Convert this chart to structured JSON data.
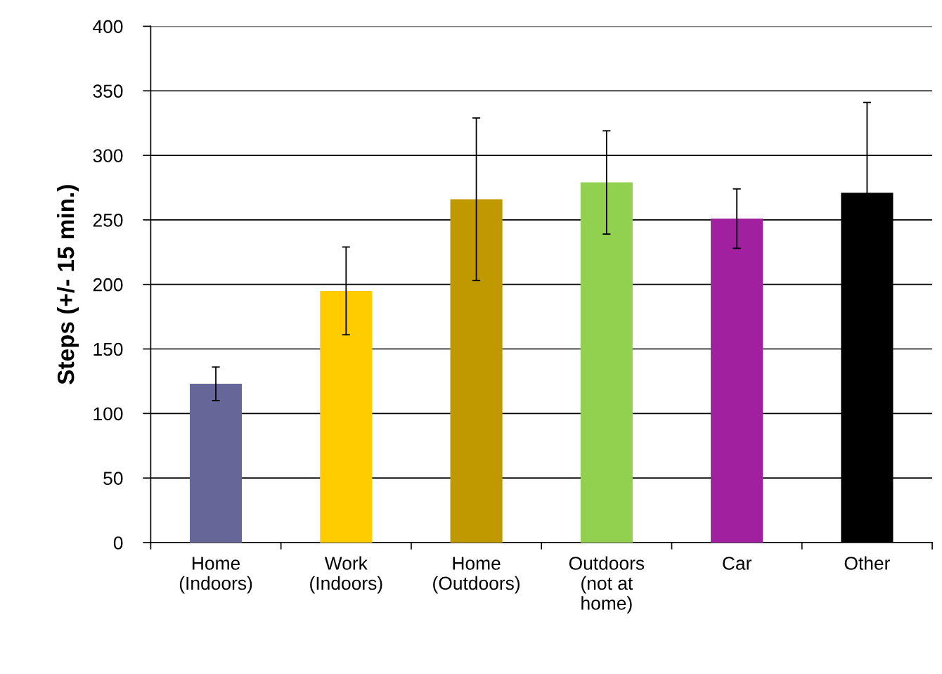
{
  "chart_data": {
    "type": "bar",
    "ylabel": "Steps (+/- 15 min.)",
    "categories": [
      "Home\n(Indoors)",
      "Work\n(Indoors)",
      "Home\n(Outdoors)",
      "Outdoors\n(not at\nhome)",
      "Car",
      "Other"
    ],
    "values": [
      123,
      195,
      266,
      279,
      251,
      271
    ],
    "errors": [
      13,
      34,
      63,
      40,
      23,
      70
    ],
    "colors": [
      "#666699",
      "#ffcc00",
      "#c09900",
      "#92d050",
      "#a020a0",
      "#000000"
    ],
    "ylim": [
      0,
      400
    ],
    "yticks": [
      0,
      50,
      100,
      150,
      200,
      250,
      300,
      350,
      400
    ],
    "grid": "y",
    "legend": false
  }
}
